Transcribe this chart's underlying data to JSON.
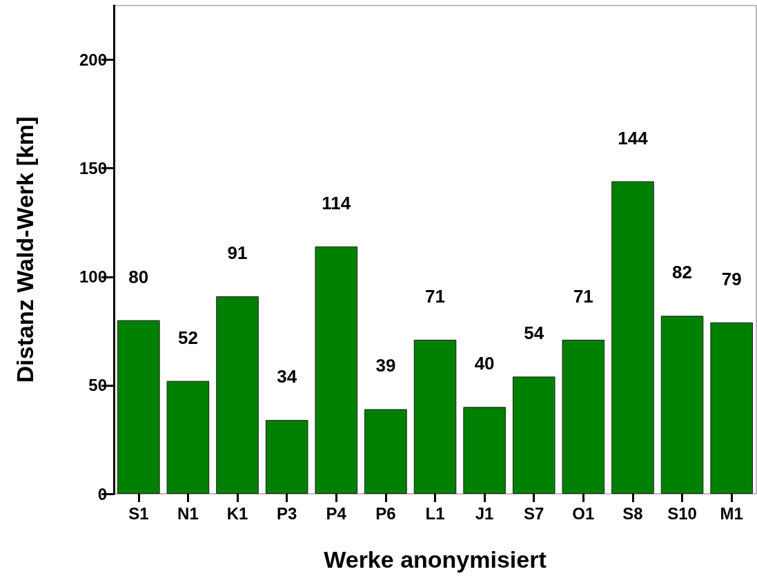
{
  "chart_data": {
    "type": "bar",
    "xlabel": "Werke anonymisiert",
    "ylabel": "Distanz Wald-Werk [km]",
    "categories": [
      "S1",
      "N1",
      "K1",
      "P3",
      "P4",
      "P6",
      "L1",
      "J1",
      "S7",
      "O1",
      "S8",
      "S10",
      "M1"
    ],
    "values": [
      80,
      52,
      91,
      34,
      114,
      39,
      71,
      40,
      54,
      71,
      144,
      82,
      79
    ],
    "color": "#008000",
    "ylim": [
      0,
      225
    ],
    "yticks": [
      0,
      50,
      100,
      150,
      200
    ],
    "grid": false,
    "data_labels": true
  }
}
